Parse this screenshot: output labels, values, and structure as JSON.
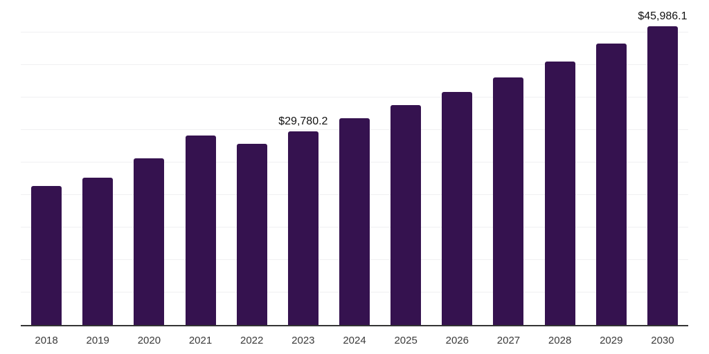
{
  "chart_data": {
    "type": "bar",
    "title": "",
    "xlabel": "",
    "ylabel": "",
    "categories": [
      "2018",
      "2019",
      "2020",
      "2021",
      "2022",
      "2023",
      "2024",
      "2025",
      "2026",
      "2027",
      "2028",
      "2029",
      "2030"
    ],
    "values": [
      21400,
      22700,
      25600,
      29100,
      27900,
      29780.2,
      31800,
      33800,
      35800,
      38100,
      40500,
      43300,
      45986.1
    ],
    "data_labels": {
      "2023": "$29,780.2",
      "2030": "$45,986.1"
    },
    "ylim": [
      0,
      50000
    ],
    "grid_step": 5000,
    "grid": true,
    "legend": false,
    "y_tick_labels_visible": false,
    "colors": {
      "bar": "#35124f",
      "axis_line": "#333333",
      "gridline": "#f0f0f2",
      "tick_label": "#3a3a3a",
      "data_label": "#111111",
      "background": "#ffffff"
    }
  }
}
